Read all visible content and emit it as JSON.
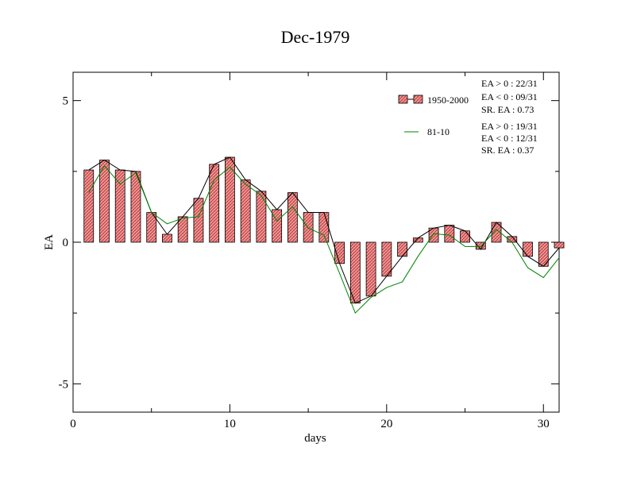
{
  "chart_data": {
    "type": "bar",
    "title": "Dec-1979",
    "xlabel": "days",
    "ylabel": "EA",
    "xlim": [
      0,
      31
    ],
    "ylim": [
      -6,
      6
    ],
    "x_ticks": [
      0,
      10,
      20,
      30
    ],
    "x_tick_labels": [
      "0",
      "10",
      "20",
      "30"
    ],
    "y_ticks": [
      5,
      0,
      -5
    ],
    "y_tick_labels": [
      "5",
      "0",
      "-5"
    ],
    "days": [
      1,
      2,
      3,
      4,
      5,
      6,
      7,
      8,
      9,
      10,
      11,
      12,
      13,
      14,
      15,
      16,
      17,
      18,
      19,
      20,
      21,
      22,
      23,
      24,
      25,
      26,
      27,
      28,
      29,
      30,
      31
    ],
    "series": [
      {
        "name": "1950-2000",
        "style": "hatched bars with black connecting line",
        "color": "#e87a7a",
        "values": [
          2.55,
          2.9,
          2.55,
          2.5,
          1.05,
          0.28,
          0.9,
          1.55,
          2.75,
          3.0,
          2.2,
          1.8,
          1.15,
          1.75,
          1.05,
          1.05,
          -0.75,
          -2.15,
          -1.9,
          -1.2,
          -0.5,
          0.15,
          0.5,
          0.6,
          0.4,
          -0.25,
          0.7,
          0.2,
          -0.5,
          -0.85,
          -0.2
        ]
      },
      {
        "name": "81-10",
        "style": "line",
        "color": "#008000",
        "values": [
          1.75,
          2.7,
          2.05,
          2.45,
          1.05,
          0.65,
          0.85,
          0.9,
          2.2,
          2.65,
          2.05,
          1.65,
          0.75,
          1.25,
          0.5,
          0.25,
          -1.1,
          -2.5,
          -1.95,
          -1.6,
          -1.4,
          -0.5,
          0.3,
          0.25,
          -0.15,
          -0.15,
          0.45,
          0.0,
          -0.9,
          -1.25,
          -0.55
        ]
      }
    ],
    "legend": {
      "placement": "top-right",
      "entries": [
        "1950-2000",
        "81-10"
      ],
      "stats_1950_2000": [
        "EA > 0 : 22/31",
        "EA < 0 : 09/31",
        "SR. EA :  0.73"
      ],
      "stats_81_10": [
        "EA > 0 : 19/31",
        "EA < 0 : 12/31",
        "SR. EA :  0.37"
      ]
    }
  }
}
